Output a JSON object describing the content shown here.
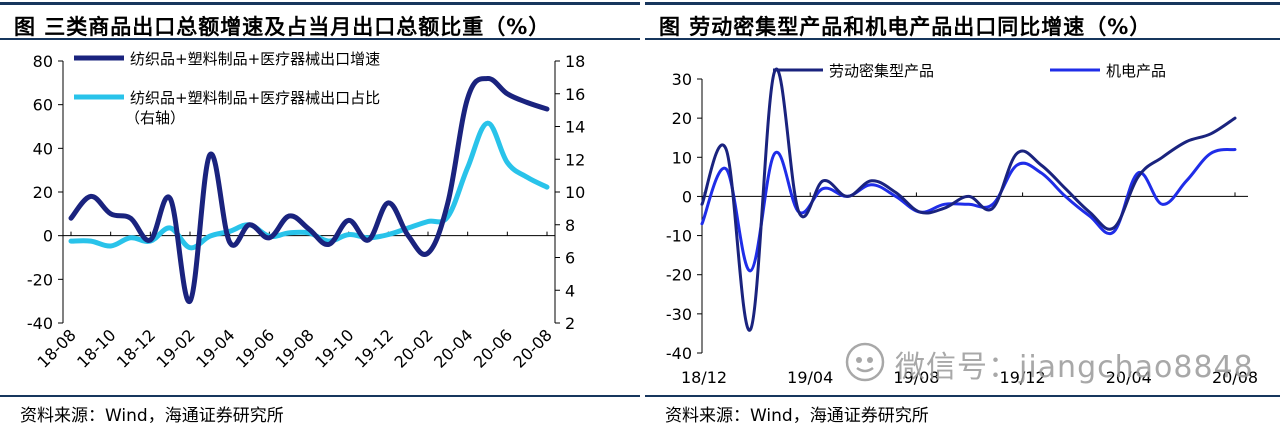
{
  "left": {
    "title": "图 三类商品出口总额增速及占当月出口总额比重（%）",
    "source": "资料来源：Wind，海通证券研究所",
    "chart_data": {
      "type": "line",
      "title": "三类商品出口总额增速及占当月出口总额比重（%）",
      "x_labels": [
        "18-08",
        "18-10",
        "18-12",
        "19-02",
        "19-04",
        "19-06",
        "19-08",
        "19-10",
        "19-12",
        "20-02",
        "20-04",
        "20-06",
        "20-08"
      ],
      "ylim_left": [
        -40,
        80
      ],
      "yticks_left": [
        "80",
        "60",
        "40",
        "20",
        "0",
        "-20",
        "-40"
      ],
      "ylim_right": [
        2,
        18
      ],
      "yticks_right": [
        "18",
        "16",
        "14",
        "12",
        "10",
        "8",
        "6",
        "4",
        "2"
      ],
      "legend_placement": "top-left",
      "legend_note": "（右轴）",
      "series": [
        {
          "name": "纺织品+塑料制品+医疗器械出口增速",
          "axis": "left",
          "color": "#1a237e",
          "values": [
            8,
            18,
            10,
            8,
            -2,
            17,
            -30,
            37,
            -3,
            5,
            -1,
            9,
            3,
            -4,
            7,
            -2,
            15,
            0,
            -8,
            15,
            63,
            72,
            65,
            61,
            58
          ]
        },
        {
          "name": "纺织品+塑料制品+医疗器械出口占比",
          "axis": "right",
          "color": "#29c3ea",
          "values": [
            7.0,
            7.0,
            6.7,
            7.2,
            7.0,
            7.8,
            6.6,
            7.3,
            7.6,
            8.0,
            7.3,
            7.5,
            7.5,
            7.0,
            7.4,
            7.2,
            7.4,
            7.8,
            8.2,
            8.5,
            11.5,
            14.2,
            11.8,
            10.9,
            10.3
          ]
        }
      ]
    }
  },
  "right": {
    "title": "图 劳动密集型产品和机电产品出口同比增速（%）",
    "source": "资料来源：Wind，海通证券研究所",
    "watermark": "微信号：jiangchao8848",
    "chart_data": {
      "type": "line",
      "title": "劳动密集型产品和机电产品出口同比增速（%）",
      "x_labels": [
        "18/12",
        "19/04",
        "19/08",
        "19/12",
        "20/04",
        "20/08"
      ],
      "ylim": [
        -40,
        30
      ],
      "yticks": [
        "30",
        "20",
        "10",
        "0",
        "-10",
        "-20",
        "-30",
        "-40"
      ],
      "legend_placement": "top",
      "series": [
        {
          "name": "劳动密集型产品",
          "color": "#1a237e",
          "values": [
            -2,
            12,
            -34,
            32,
            -4,
            4,
            0,
            4,
            1,
            -4,
            -3,
            0,
            -3,
            11,
            8,
            2,
            -4,
            -8,
            5,
            10,
            14,
            16,
            20
          ]
        },
        {
          "name": "机电产品",
          "color": "#1f2de8",
          "values": [
            -7,
            7,
            -19,
            11,
            -4,
            2,
            0,
            3,
            0,
            -4,
            -2,
            -2,
            -2,
            8,
            6,
            0,
            -5,
            -9,
            6,
            -2,
            4,
            11,
            12
          ]
        }
      ]
    }
  }
}
